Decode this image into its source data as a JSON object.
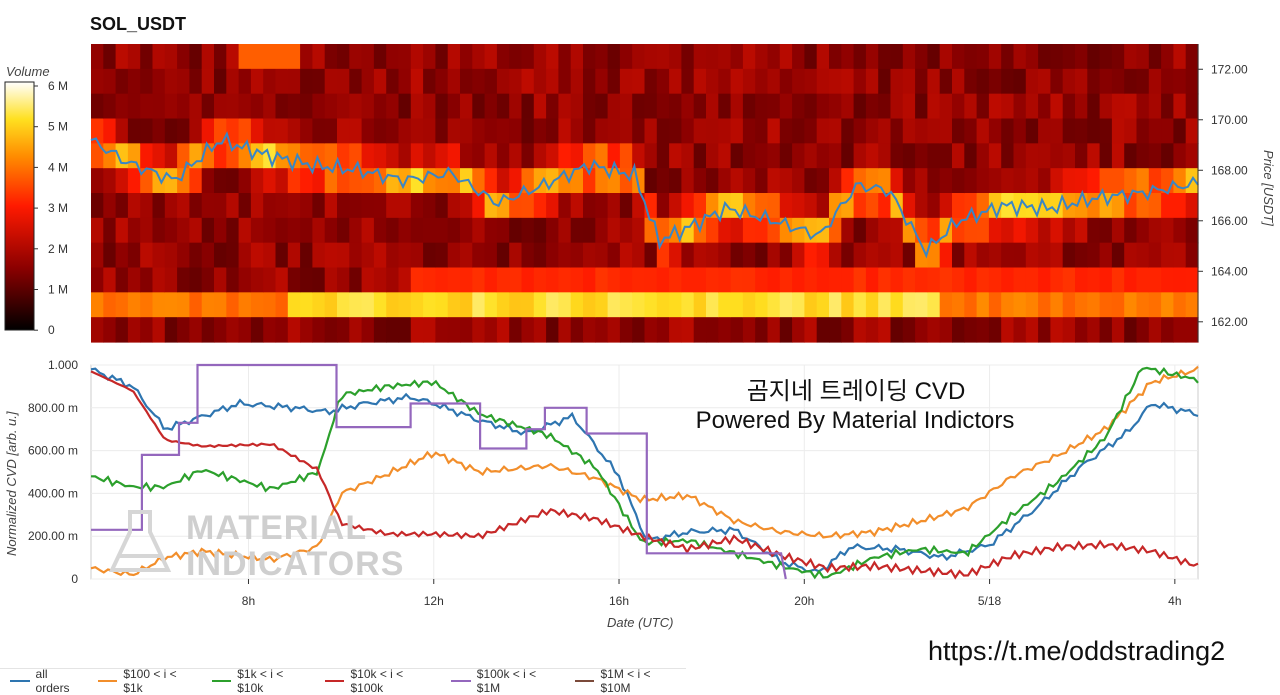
{
  "title": "SOL_USDT",
  "heatmap": {
    "colorbar_title": "Volume",
    "colorbar_ticks": [
      "6 M",
      "5 M",
      "4 M",
      "3 M",
      "2 M",
      "1 M",
      "0"
    ],
    "price_ticks": [
      "172.00",
      "170.00",
      "168.00",
      "166.00",
      "164.00",
      "162.00"
    ],
    "price_axis_title": "Price [USDT]"
  },
  "cvd": {
    "y_ticks": [
      "1.000",
      "800.00 m",
      "600.00 m",
      "400.00 m",
      "200.00 m",
      "0"
    ],
    "y_axis_title": "Normalized CVD [arb. u.]",
    "x_ticks": [
      "8h",
      "12h",
      "16h",
      "20h",
      "5/18",
      "4h"
    ],
    "x_axis_title": "Date (UTC)"
  },
  "overlay": {
    "line1": "곰지네 트레이딩 CVD",
    "line2": "Powered By Material Indictors"
  },
  "watermark": {
    "line1": "MATERIAL",
    "line2": "INDICATORS"
  },
  "link": "https://t.me/oddstrading2",
  "legend": [
    {
      "label": "all orders",
      "color": "#2e75b0"
    },
    {
      "label": "$100 < i < $1k",
      "color": "#f28e2b"
    },
    {
      "label": "$1k < i < $10k",
      "color": "#2ca02c"
    },
    {
      "label": "$10k < i < $100k",
      "color": "#c62828"
    },
    {
      "label": "$100k < i < $1M",
      "color": "#9467bd"
    },
    {
      "label": "$1M < i < $10M",
      "color": "#7b4a3a"
    }
  ],
  "chart_data": [
    {
      "type": "heatmap",
      "title": "SOL_USDT",
      "ylabel": "Price [USDT]",
      "ylim": [
        161.2,
        173.0
      ],
      "price_line_color": "#3a86c4",
      "colorbar": {
        "label": "Volume",
        "range": [
          0,
          6000000
        ]
      },
      "x_range_hours": [
        4.2,
        28.2
      ],
      "price_series": {
        "x_hours": [
          4.2,
          5.0,
          6.0,
          7.0,
          8.0,
          9.0,
          10.0,
          11.0,
          12.0,
          13.0,
          14.0,
          15.0,
          16.0,
          16.5,
          17.0,
          18.0,
          19.0,
          20.0,
          20.8,
          21.5,
          22.3,
          23.0,
          24.0,
          25.0,
          26.0,
          27.0,
          28.2
        ],
        "y": [
          169.2,
          168.3,
          167.6,
          169.2,
          168.6,
          168.2,
          168.0,
          167.6,
          167.9,
          166.7,
          167.4,
          168.2,
          167.8,
          165.2,
          165.6,
          166.5,
          166.0,
          165.4,
          167.4,
          167.2,
          164.8,
          166.0,
          166.6,
          166.5,
          166.9,
          167.1,
          167.5
        ]
      }
    },
    {
      "type": "line",
      "xlabel": "Date (UTC)",
      "ylabel": "Normalized CVD [arb. u.]",
      "ylim": [
        0,
        1.0
      ],
      "x_ticks": [
        "8h",
        "12h",
        "16h",
        "20h",
        "5/18",
        "4h"
      ],
      "x_range_hours": [
        4.6,
        28.5
      ],
      "series": [
        {
          "name": "all orders",
          "x": [
            4.6,
            5.5,
            6.2,
            7.0,
            7.8,
            9.0,
            9.7,
            10.5,
            11.5,
            12.0,
            13.0,
            14.0,
            15.0,
            16.0,
            16.6,
            17.5,
            18.5,
            19.5,
            20.3,
            21.0,
            22.0,
            23.0,
            24.0,
            25.0,
            26.0,
            27.0,
            27.5,
            28.5
          ],
          "y": [
            0.98,
            0.9,
            0.7,
            0.76,
            0.82,
            0.8,
            0.78,
            0.82,
            0.85,
            0.82,
            0.74,
            0.68,
            0.76,
            0.48,
            0.18,
            0.22,
            0.23,
            0.08,
            0.03,
            0.15,
            0.14,
            0.1,
            0.16,
            0.33,
            0.53,
            0.69,
            0.82,
            0.77
          ]
        },
        {
          "name": "$100 < i < $1k",
          "x": [
            4.6,
            5.5,
            6.2,
            7.0,
            8.5,
            9.5,
            10.0,
            11.0,
            12.0,
            13.0,
            14.5,
            15.5,
            16.5,
            17.5,
            18.5,
            19.5,
            20.5,
            21.5,
            22.5,
            23.5,
            24.5,
            25.5,
            26.5,
            27.5,
            28.5
          ],
          "y": [
            0.05,
            0.02,
            0.1,
            0.13,
            0.09,
            0.15,
            0.4,
            0.49,
            0.59,
            0.5,
            0.53,
            0.47,
            0.37,
            0.39,
            0.27,
            0.22,
            0.2,
            0.22,
            0.27,
            0.33,
            0.48,
            0.58,
            0.7,
            0.92,
            0.98
          ]
        },
        {
          "name": "$1k < i < $10k",
          "x": [
            4.6,
            5.5,
            6.2,
            7.0,
            8.5,
            9.5,
            10.0,
            11.0,
            12.0,
            13.0,
            14.5,
            15.5,
            16.5,
            17.5,
            18.5,
            19.5,
            20.5,
            21.5,
            22.5,
            23.5,
            24.5,
            25.5,
            26.5,
            27.3,
            28.5
          ],
          "y": [
            0.48,
            0.43,
            0.43,
            0.51,
            0.42,
            0.5,
            0.86,
            0.9,
            0.92,
            0.77,
            0.67,
            0.52,
            0.17,
            0.18,
            0.12,
            0.06,
            0.01,
            0.1,
            0.14,
            0.12,
            0.3,
            0.46,
            0.66,
            0.99,
            0.93
          ]
        },
        {
          "name": "$10k < i < $100k",
          "x": [
            4.6,
            5.5,
            6.2,
            7.0,
            8.5,
            9.5,
            10.0,
            11.0,
            12.0,
            13.0,
            14.5,
            15.5,
            16.5,
            17.5,
            18.5,
            19.5,
            20.5,
            21.5,
            22.5,
            23.5,
            24.5,
            25.5,
            26.5,
            27.5,
            28.5
          ],
          "y": [
            0.97,
            0.88,
            0.65,
            0.62,
            0.63,
            0.51,
            0.26,
            0.21,
            0.21,
            0.2,
            0.32,
            0.28,
            0.2,
            0.14,
            0.19,
            0.11,
            0.05,
            0.06,
            0.04,
            0.02,
            0.11,
            0.15,
            0.16,
            0.13,
            0.06
          ]
        },
        {
          "name": "$100k < i < $1M",
          "x": [
            4.6,
            5.7,
            5.7,
            6.5,
            6.5,
            6.9,
            6.9,
            8.0,
            9.0,
            9.9,
            9.9,
            11.5,
            11.5,
            13.0,
            13.0,
            14.0,
            14.0,
            14.4,
            14.4,
            15.3,
            15.3,
            15.8,
            15.8,
            16.6,
            16.6,
            18.0,
            19.5,
            19.6
          ],
          "y": [
            0.23,
            0.23,
            0.58,
            0.58,
            0.73,
            0.73,
            1.0,
            1.0,
            1.0,
            1.0,
            0.71,
            0.71,
            0.82,
            0.82,
            0.61,
            0.61,
            0.7,
            0.7,
            0.8,
            0.8,
            0.68,
            0.68,
            0.68,
            0.68,
            0.12,
            0.12,
            0.12,
            0.0
          ]
        },
        {
          "name": "$1M < i < $10M",
          "x": [],
          "y": []
        }
      ]
    }
  ]
}
